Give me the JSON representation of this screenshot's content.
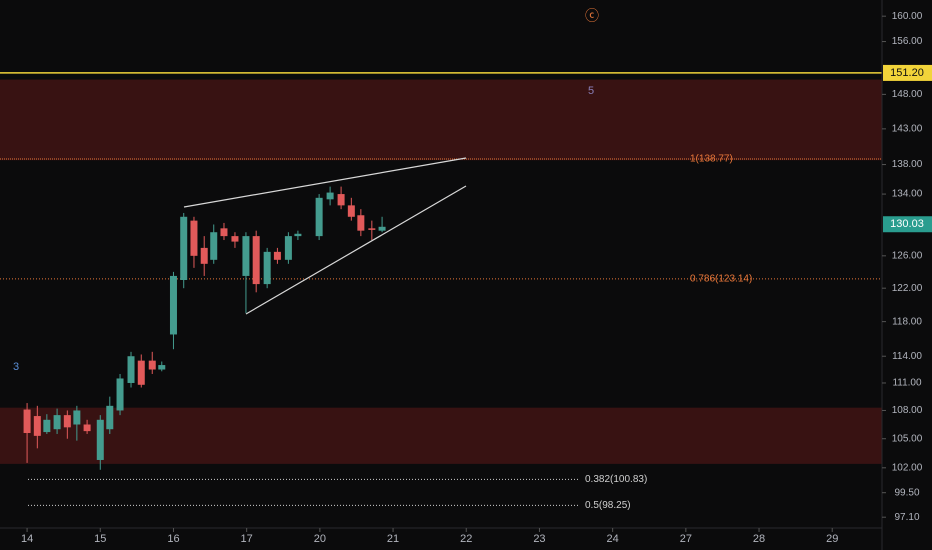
{
  "chart_data": {
    "type": "candlestick",
    "x": [
      0,
      0.14,
      0.27,
      0.41,
      0.55,
      0.68,
      0.82,
      1.0,
      1.13,
      1.27,
      1.42,
      1.56,
      1.71,
      1.84,
      2.0,
      2.14,
      2.28,
      2.42,
      2.55,
      2.69,
      2.84,
      2.99,
      3.13,
      3.28,
      3.42,
      3.57,
      3.7,
      3.99,
      4.14,
      4.29,
      4.43,
      4.56,
      4.71,
      4.85
    ],
    "open": [
      108.1,
      107.4,
      105.7,
      106.0,
      107.5,
      106.5,
      106.5,
      102.8,
      106.0,
      108.0,
      111.0,
      113.5,
      113.5,
      112.5,
      116.5,
      123.0,
      130.5,
      127.0,
      125.5,
      129.5,
      128.5,
      123.5,
      128.5,
      122.5,
      126.5,
      125.5,
      128.5,
      128.5,
      133.3,
      134.0,
      132.5,
      131.2,
      129.5,
      129.2
    ],
    "high": [
      108.8,
      108.5,
      107.6,
      108.2,
      108.0,
      108.5,
      107.0,
      107.5,
      109.5,
      112.0,
      114.5,
      114.2,
      114.5,
      113.4,
      124.0,
      131.5,
      131.0,
      128.5,
      130.0,
      130.2,
      129.0,
      129.0,
      129.2,
      127.0,
      127.0,
      129.0,
      129.2,
      134.0,
      135.0,
      135.0,
      133.5,
      132.0,
      130.5,
      131.0
    ],
    "low": [
      102.5,
      104.0,
      105.5,
      105.5,
      105.0,
      104.8,
      105.5,
      101.8,
      105.5,
      107.5,
      110.5,
      110.5,
      112.0,
      112.3,
      114.8,
      122.0,
      124.5,
      123.5,
      125.0,
      128.0,
      127.0,
      119.0,
      121.5,
      122.0,
      125.0,
      125.0,
      128.0,
      128.0,
      132.5,
      132.0,
      130.5,
      128.5,
      128.0,
      129.0
    ],
    "close": [
      105.6,
      105.3,
      107.0,
      107.5,
      106.2,
      108.0,
      105.8,
      107.0,
      108.5,
      111.5,
      114.0,
      110.8,
      112.5,
      113.0,
      123.5,
      131.0,
      126.0,
      125.0,
      129.0,
      128.5,
      127.8,
      128.5,
      122.5,
      126.5,
      125.5,
      128.5,
      128.8,
      133.5,
      134.2,
      132.5,
      131.0,
      129.2,
      129.3,
      129.7
    ],
    "up_color": "#449c8f",
    "down_color": "#e25a5a",
    "xlim": [
      -0.37,
      11.68
    ],
    "xticks": [
      {
        "value": 0,
        "label": "14"
      },
      {
        "value": 1,
        "label": "15"
      },
      {
        "value": 2,
        "label": "16"
      },
      {
        "value": 3,
        "label": "17"
      },
      {
        "value": 4,
        "label": "20"
      },
      {
        "value": 5,
        "label": "21"
      },
      {
        "value": 6,
        "label": "22"
      },
      {
        "value": 7,
        "label": "23"
      },
      {
        "value": 8,
        "label": "24"
      },
      {
        "value": 9,
        "label": "27"
      },
      {
        "value": 10,
        "label": "28"
      },
      {
        "value": 11,
        "label": "29"
      }
    ],
    "ylim": [
      96.06,
      162.6
    ],
    "log_scale": true,
    "yticks": [
      {
        "value": 160,
        "label": "160.00"
      },
      {
        "value": 156,
        "label": "156.00"
      },
      {
        "value": 148,
        "label": "148.00"
      },
      {
        "value": 143,
        "label": "143.00"
      },
      {
        "value": 138,
        "label": "138.00"
      },
      {
        "value": 134,
        "label": "134.00"
      },
      {
        "value": 126,
        "label": "126.00"
      },
      {
        "value": 122,
        "label": "122.00"
      },
      {
        "value": 118,
        "label": "118.00"
      },
      {
        "value": 114,
        "label": "114.00"
      },
      {
        "value": 111,
        "label": "111.00"
      },
      {
        "value": 108,
        "label": "108.00"
      },
      {
        "value": 105,
        "label": "105.00"
      },
      {
        "value": 102,
        "label": "102.00"
      },
      {
        "value": 99.5,
        "label": "99.50"
      },
      {
        "value": 97.1,
        "label": "97.10"
      }
    ],
    "zones": [
      {
        "from": 138.6,
        "to": 150.2
      },
      {
        "from": 102.4,
        "to": 108.3
      }
    ],
    "hline": {
      "value": 151.2,
      "label": "151.20",
      "color": "#f2d43a"
    },
    "last_price": {
      "value": 130.03,
      "label": "130.03",
      "color": "#2a9d8f"
    },
    "fib_levels": [
      {
        "value": 138.77,
        "label": "1(138.77)"
      },
      {
        "value": 123.14,
        "label": "0.786(123.14)"
      },
      {
        "value": 100.83,
        "label": "0.382(100.83)"
      },
      {
        "value": 98.25,
        "label": "0.5(98.25)"
      }
    ],
    "annotations": [
      {
        "text": "ⓒ"
      },
      {
        "text": "5"
      },
      {
        "text": "3"
      }
    ]
  }
}
